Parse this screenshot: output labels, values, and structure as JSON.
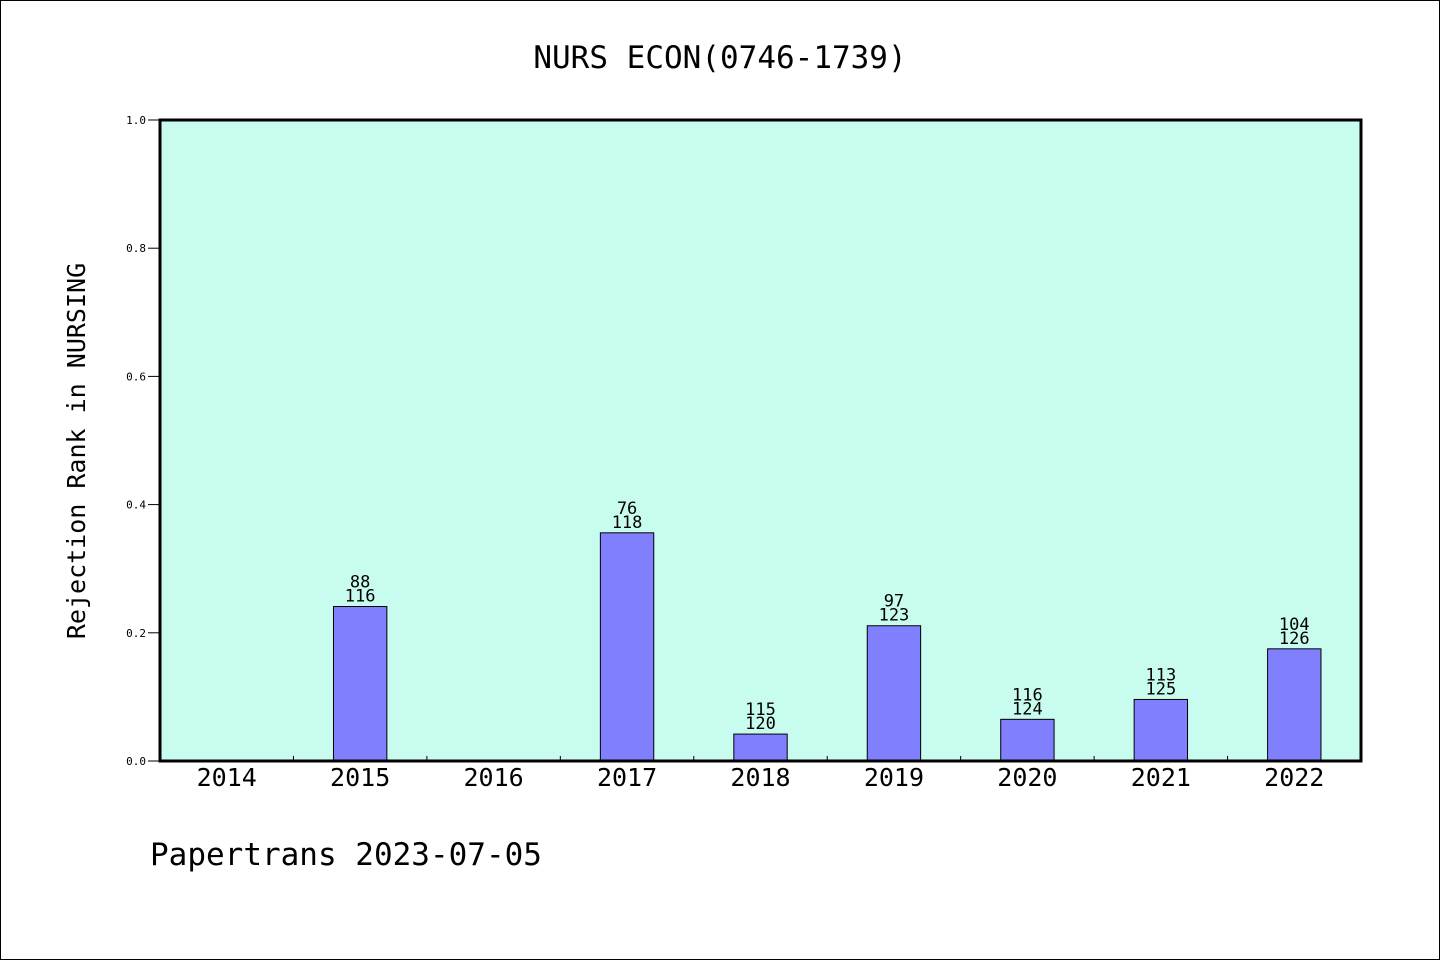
{
  "chart_data": {
    "type": "bar",
    "title": "NURS ECON(0746-1739)",
    "xlabel": "",
    "ylabel": "Rejection Rank in NURSING",
    "categories": [
      "2014",
      "2015",
      "2016",
      "2017",
      "2018",
      "2019",
      "2020",
      "2021",
      "2022"
    ],
    "values": [
      null,
      0.241,
      null,
      0.356,
      0.042,
      0.211,
      0.065,
      0.096,
      0.175
    ],
    "data_labels": [
      null,
      [
        "88",
        "116"
      ],
      null,
      [
        "76",
        "118"
      ],
      [
        "115",
        "120"
      ],
      [
        "97",
        "123"
      ],
      [
        "116",
        "124"
      ],
      [
        "113",
        "125"
      ],
      [
        "104",
        "126"
      ]
    ],
    "ylim": [
      0,
      1.0
    ],
    "yticks": [
      "0.0",
      "0.2",
      "0.4",
      "0.6",
      "0.8",
      "1.0"
    ],
    "grid": false,
    "colors": {
      "plot_background": "#c8fcee",
      "bar_fill": "#8080ff",
      "bar_stroke": "#000000",
      "axis": "#000000"
    }
  },
  "footer": {
    "text": "Papertrans 2023-07-05"
  }
}
